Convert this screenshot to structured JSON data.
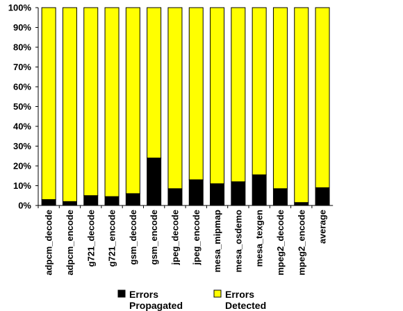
{
  "chart_data": {
    "type": "bar",
    "stacked": true,
    "percent_stacked": true,
    "categories": [
      "adpcm_decode",
      "adpcm_encode",
      "g721_decode",
      "g721_encode",
      "gsm_decode",
      "gsm_encode",
      "jpeg_decode",
      "jpeg_encode",
      "mesa_mipmap",
      "mesa_osdemo",
      "mesa_texgen",
      "mpeg2_decode",
      "mpeg2_encode",
      "average"
    ],
    "series": [
      {
        "name": "Errors Propagated",
        "color": "#000000",
        "values": [
          3,
          2,
          5,
          4.5,
          6,
          24,
          8.5,
          13,
          11,
          12,
          15.5,
          8.5,
          1.5,
          9
        ]
      },
      {
        "name": "Errors Detected",
        "color": "#ffff00",
        "values": [
          97,
          98,
          95,
          95.5,
          94,
          76,
          91.5,
          87,
          89,
          88,
          84.5,
          91.5,
          98.5,
          91
        ]
      }
    ],
    "ylim": [
      0,
      100
    ],
    "yticks": [
      "0%",
      "10%",
      "20%",
      "30%",
      "40%",
      "50%",
      "60%",
      "70%",
      "80%",
      "90%",
      "100%"
    ],
    "grid": false,
    "legend": {
      "placement": "bottom-center",
      "entries": [
        {
          "line1": "Errors",
          "line2": "Propagated",
          "color": "#000000"
        },
        {
          "line1": "Errors",
          "line2": "Detected",
          "color": "#ffff00"
        }
      ]
    }
  }
}
